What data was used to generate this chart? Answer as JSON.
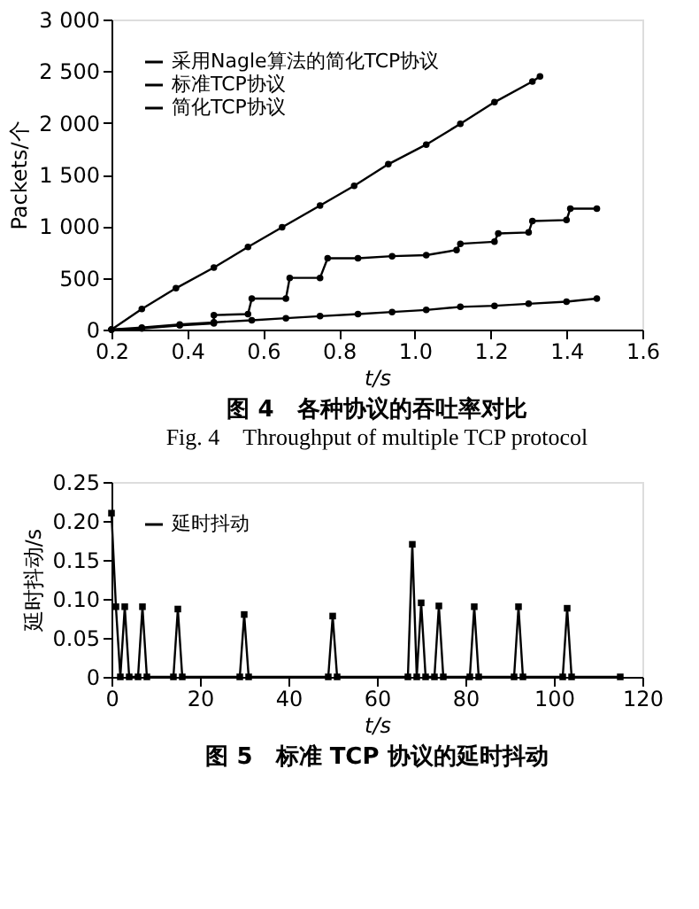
{
  "chart_data": [
    {
      "type": "line",
      "title": "图 4　各种协议的吞吐率对比",
      "subtitle": "Fig. 4　Throughput of multiple TCP protocol",
      "xlabel": "t/s",
      "ylabel": "Packets/个",
      "xlim": [
        0.2,
        1.6
      ],
      "ylim": [
        0,
        3000
      ],
      "xticks": [
        {
          "value": 0.2,
          "label": "0.2"
        },
        {
          "value": 0.4,
          "label": "0.4"
        },
        {
          "value": 0.6,
          "label": "0.6"
        },
        {
          "value": 0.8,
          "label": "0.8"
        },
        {
          "value": 1.0,
          "label": "1.0"
        },
        {
          "value": 1.2,
          "label": "1.2"
        },
        {
          "value": 1.4,
          "label": "1.4"
        },
        {
          "value": 1.6,
          "label": "1.6"
        }
      ],
      "yticks": [
        0,
        500,
        {
          "value": 1000,
          "label": "1 000"
        },
        {
          "value": 1500,
          "label": "1 500"
        },
        {
          "value": 2000,
          "label": "2 000"
        },
        {
          "value": 2500,
          "label": "2 500"
        },
        {
          "value": 3000,
          "label": "3 000"
        }
      ],
      "grid": false,
      "legend": "top left",
      "marker": "circle",
      "line_style": "solid",
      "series": [
        {
          "name": "采用Nagle算法的简化TCP协议",
          "color": "#000000",
          "x": [
            0.2,
            0.28,
            0.37,
            0.47,
            0.56,
            0.65,
            0.75,
            0.84,
            0.93,
            1.03,
            1.12,
            1.21,
            1.31,
            1.33
          ],
          "values": [
            0,
            200,
            400,
            600,
            800,
            990,
            1200,
            1390,
            1600,
            1790,
            1990,
            2200,
            2400,
            2450
          ]
        },
        {
          "name": "标准TCP协议",
          "color": "#000000",
          "x": [
            0.2,
            0.28,
            0.38,
            0.47,
            0.47,
            0.56,
            0.57,
            0.66,
            0.67,
            0.75,
            0.77,
            0.85,
            0.94,
            1.03,
            1.11,
            1.12,
            1.21,
            1.22,
            1.3,
            1.31,
            1.4,
            1.41,
            1.48
          ],
          "values": [
            0,
            10,
            40,
            60,
            140,
            150,
            300,
            300,
            500,
            500,
            690,
            690,
            710,
            720,
            770,
            830,
            850,
            930,
            940,
            1050,
            1060,
            1170,
            1170
          ]
        },
        {
          "name": "简化TCP协议",
          "color": "#000000",
          "x": [
            0.2,
            0.28,
            0.38,
            0.47,
            0.57,
            0.66,
            0.75,
            0.85,
            0.94,
            1.03,
            1.12,
            1.21,
            1.3,
            1.4,
            1.48
          ],
          "values": [
            0,
            20,
            50,
            70,
            90,
            110,
            130,
            150,
            170,
            190,
            220,
            230,
            250,
            270,
            300
          ]
        }
      ]
    },
    {
      "type": "line",
      "title": "图 5　标准 TCP 协议的延时抖动",
      "xlabel": "t/s",
      "ylabel": "延时抖动/s",
      "xlim": [
        0,
        120
      ],
      "ylim": [
        0,
        0.25
      ],
      "xticks": [
        0,
        20,
        40,
        60,
        80,
        100,
        120
      ],
      "yticks": [
        0,
        {
          "value": 0.05,
          "label": "0.05"
        },
        {
          "value": 0.1,
          "label": "0.10"
        },
        {
          "value": 0.15,
          "label": "0.15"
        },
        {
          "value": 0.2,
          "label": "0.20"
        },
        {
          "value": 0.25,
          "label": "0.25"
        }
      ],
      "grid": false,
      "legend": "top left",
      "marker": "square",
      "line_style": "solid",
      "series": [
        {
          "name": "延时抖动",
          "color": "#000000",
          "x": [
            0,
            1,
            2,
            3,
            4,
            6,
            7,
            8,
            14,
            15,
            16,
            29,
            30,
            31,
            49,
            50,
            51,
            67,
            68,
            69,
            70,
            71,
            73,
            74,
            75,
            81,
            82,
            83,
            91,
            92,
            93,
            102,
            103,
            104,
            115
          ],
          "values": [
            0.21,
            0.09,
            0,
            0.09,
            0,
            0,
            0.09,
            0,
            0,
            0.087,
            0,
            0,
            0.08,
            0,
            0,
            0.078,
            0,
            0,
            0.17,
            0,
            0.095,
            0,
            0,
            0.091,
            0,
            0,
            0.09,
            0,
            0,
            0.09,
            0,
            0,
            0.088,
            0,
            0
          ]
        }
      ]
    }
  ]
}
